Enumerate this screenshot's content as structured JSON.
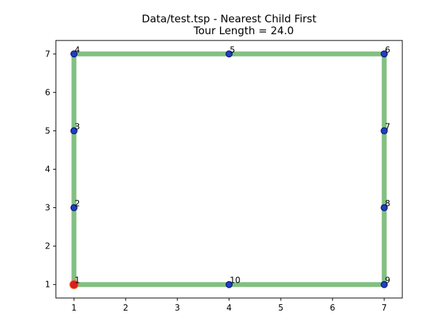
{
  "chart_data": {
    "type": "line",
    "title": "Data/test.tsp - Nearest Child First",
    "subtitle": "Tour Length = 24.0",
    "xlabel": "",
    "ylabel": "",
    "xlim": [
      0.65,
      7.35
    ],
    "ylim": [
      0.65,
      7.35
    ],
    "xticks": [
      1,
      2,
      3,
      4,
      5,
      6,
      7
    ],
    "yticks": [
      1,
      2,
      3,
      4,
      5,
      6,
      7
    ],
    "grid": false,
    "points": [
      {
        "label": "1",
        "x": 1,
        "y": 1
      },
      {
        "label": "2",
        "x": 1,
        "y": 3
      },
      {
        "label": "3",
        "x": 1,
        "y": 5
      },
      {
        "label": "4",
        "x": 1,
        "y": 7
      },
      {
        "label": "5",
        "x": 4,
        "y": 7
      },
      {
        "label": "6",
        "x": 7,
        "y": 7
      },
      {
        "label": "7",
        "x": 7,
        "y": 5
      },
      {
        "label": "8",
        "x": 7,
        "y": 3
      },
      {
        "label": "9",
        "x": 7,
        "y": 1
      },
      {
        "label": "10",
        "x": 4,
        "y": 1
      }
    ],
    "tour": [
      "1",
      "2",
      "3",
      "4",
      "5",
      "6",
      "7",
      "8",
      "9",
      "10",
      "1"
    ],
    "start": "1",
    "colors": {
      "tour": "#82c082",
      "point": "#1f3fbf",
      "point_edge": "#0a0a6a",
      "start": "#d62020"
    }
  }
}
